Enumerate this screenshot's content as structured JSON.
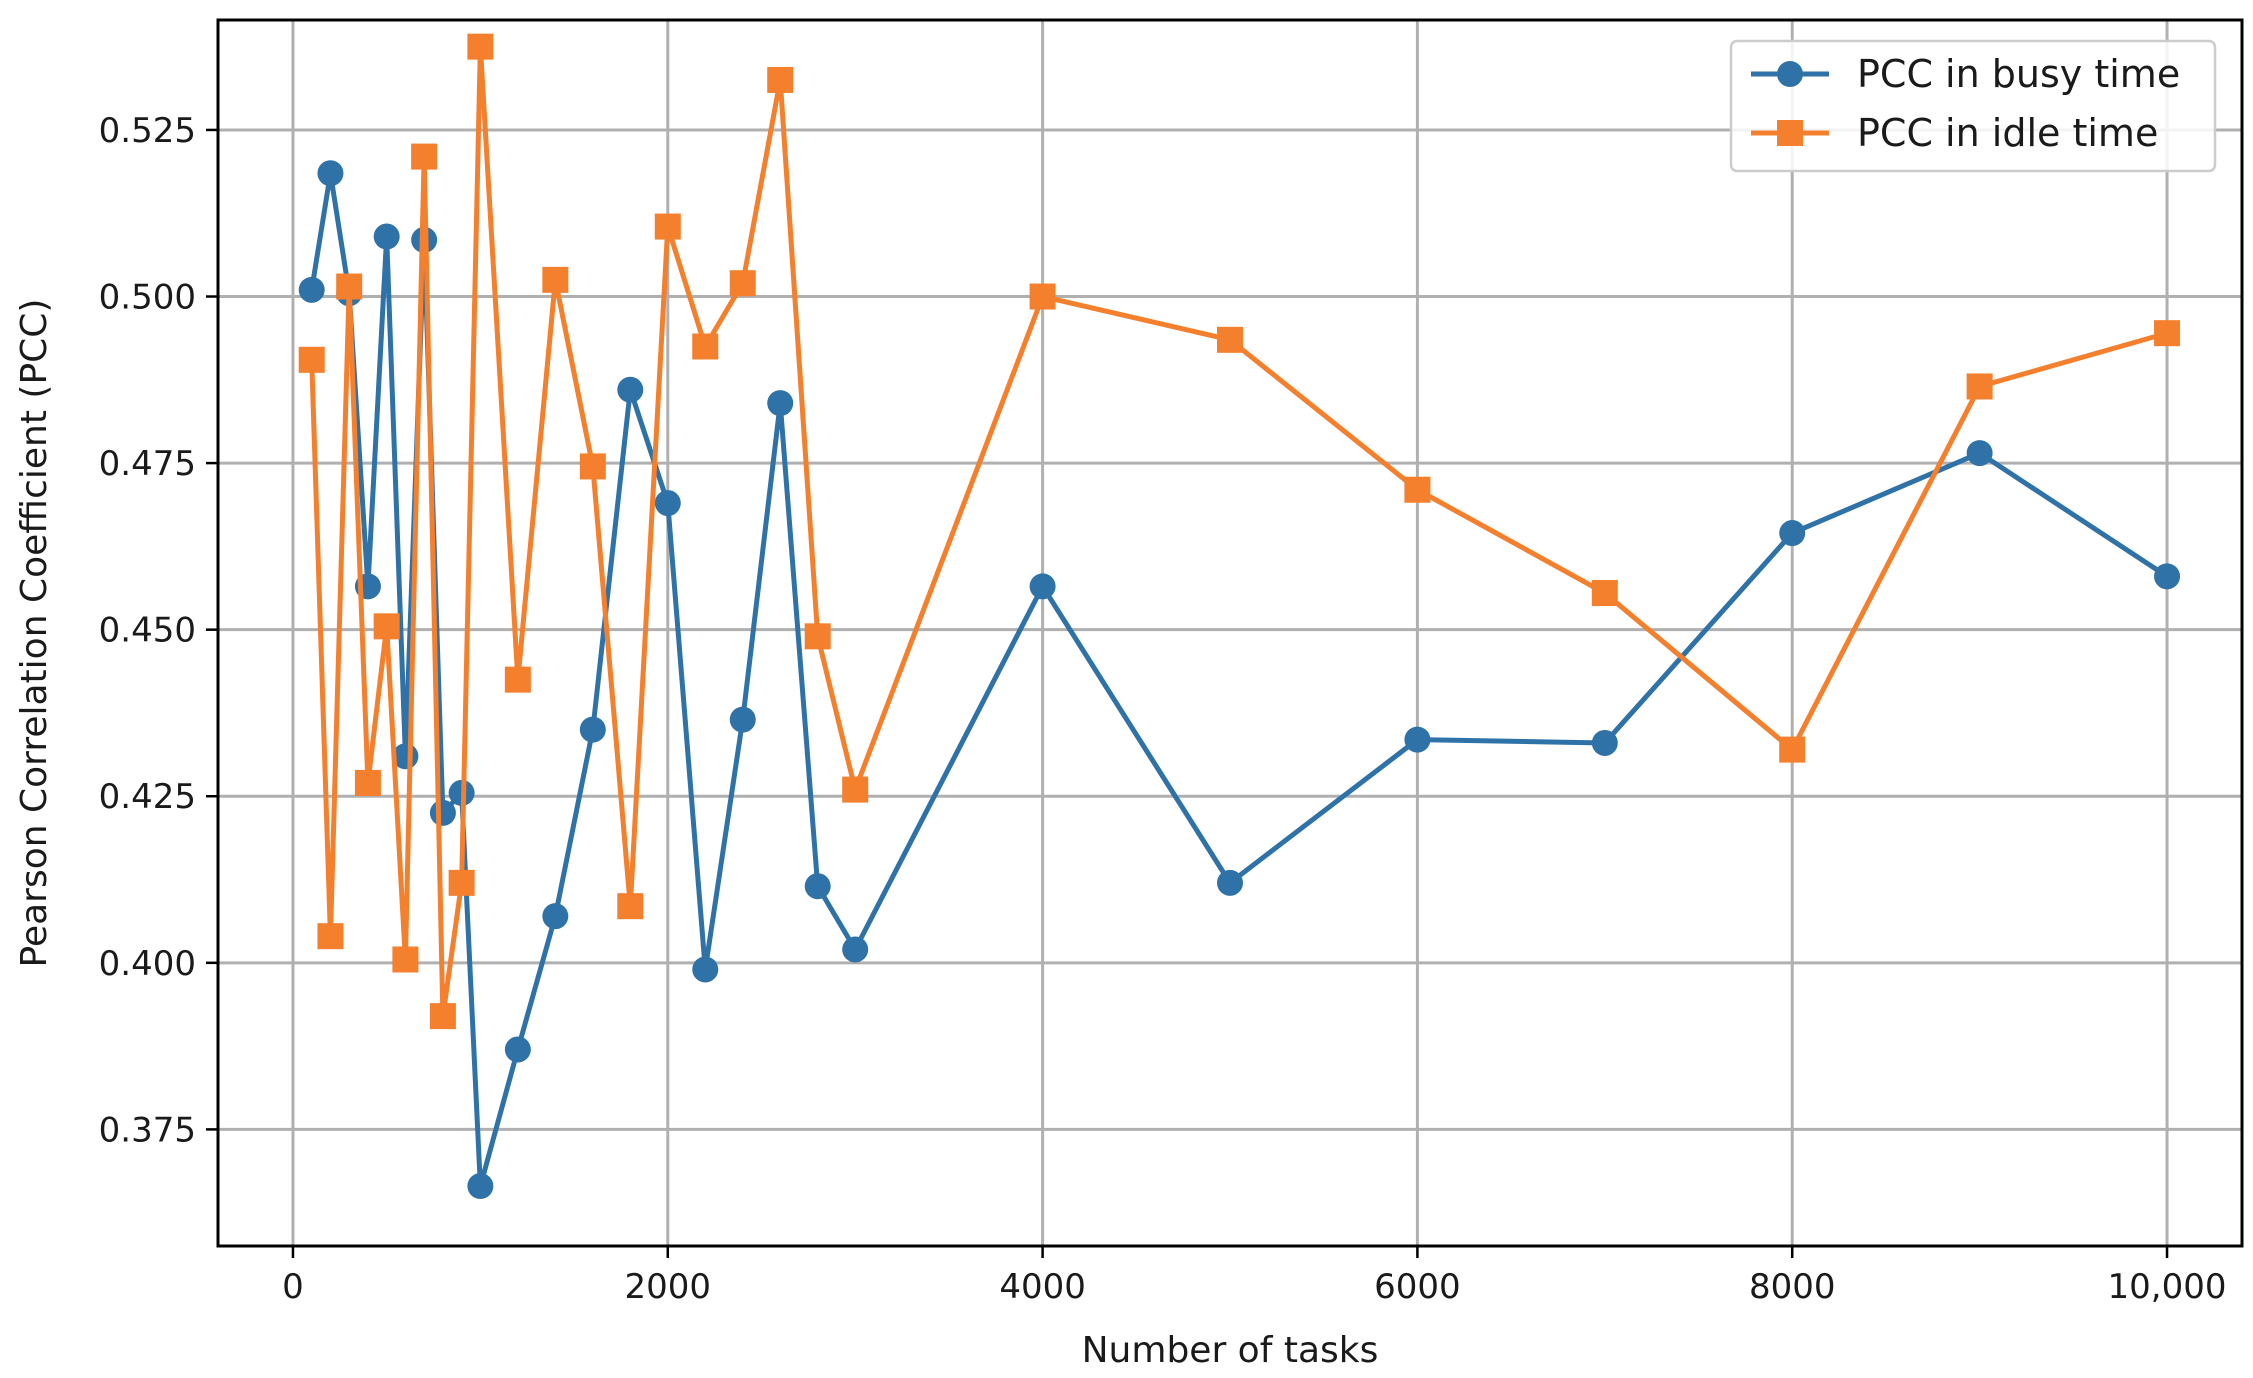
{
  "chart_data": {
    "type": "line",
    "title": "",
    "xlabel": "Number of tasks",
    "ylabel": "Pearson Correlation Coefficient (PCC)",
    "xlim": [
      -400,
      10400
    ],
    "ylim": [
      0.3575,
      0.5415
    ],
    "xticks": [
      0,
      2000,
      4000,
      6000,
      8000,
      10000
    ],
    "xtick_labels": [
      "0",
      "2000",
      "4000",
      "6000",
      "8000",
      "10,000"
    ],
    "yticks": [
      0.375,
      0.4,
      0.425,
      0.45,
      0.475,
      0.5,
      0.525
    ],
    "ytick_labels": [
      "0.375",
      "0.400",
      "0.425",
      "0.450",
      "0.475",
      "0.500",
      "0.525"
    ],
    "grid": true,
    "legend_position": "top-right",
    "x": [
      100,
      200,
      300,
      400,
      500,
      600,
      700,
      800,
      900,
      1000,
      1200,
      1400,
      1600,
      1800,
      2000,
      2200,
      2400,
      2600,
      2800,
      3000,
      4000,
      5000,
      6000,
      7000,
      8000,
      9000,
      10000
    ],
    "series": [
      {
        "name": "PCC in busy time",
        "color": "#2f72a8",
        "marker": "circle",
        "values": [
          0.501,
          0.5185,
          0.5005,
          0.4565,
          0.509,
          0.431,
          0.5085,
          0.4225,
          0.4255,
          0.3665,
          0.387,
          0.407,
          0.435,
          0.486,
          0.469,
          0.399,
          0.4365,
          0.484,
          0.4115,
          0.402,
          0.4565,
          0.412,
          0.4335,
          0.433,
          0.4645,
          0.4765,
          0.458
        ]
      },
      {
        "name": "PCC in idle time",
        "color": "#f47f2d",
        "marker": "square",
        "values": [
          0.4905,
          0.404,
          0.5015,
          0.427,
          0.4505,
          0.4005,
          0.521,
          0.392,
          0.412,
          0.5375,
          0.4425,
          0.5025,
          0.4745,
          0.4085,
          0.5105,
          0.4925,
          0.502,
          0.5325,
          0.449,
          0.426,
          0.5,
          0.4935,
          0.471,
          0.4555,
          0.432,
          0.4865,
          0.4945
        ]
      }
    ]
  }
}
